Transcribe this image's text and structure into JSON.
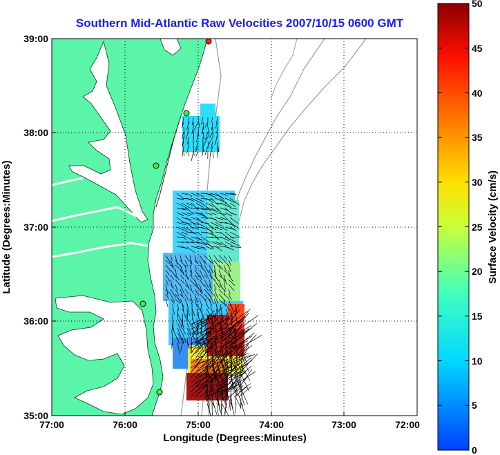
{
  "title": "Southern Mid-Atlantic Raw Velocities 2007/10/15 0600 GMT",
  "map": {
    "xlabel": "Longitude (Degrees:Minutes)",
    "ylabel": "Latitude (Degrees:Minutes)",
    "x_ticks": [
      "77:00",
      "76:00",
      "75:00",
      "74:00",
      "73:00",
      "72:00"
    ],
    "y_ticks": [
      "39:00",
      "38:00",
      "37:00",
      "36:00",
      "35:00"
    ],
    "lon_range": [
      -77,
      -72
    ],
    "lat_range": [
      35,
      39
    ],
    "land_color": "#5af5a8",
    "grid": "dotted"
  },
  "colorbar": {
    "label": "Surface Velocity (cm/s)",
    "ticks": [
      "50",
      "45",
      "40",
      "35",
      "30",
      "25",
      "20",
      "15",
      "10",
      "5",
      "0"
    ],
    "range": [
      0,
      50
    ],
    "colormap": "jet"
  },
  "stations": [
    {
      "color": "#ff2020"
    },
    {
      "color": "#44ee44"
    },
    {
      "color": "#44ee44"
    },
    {
      "color": "#44ee44"
    },
    {
      "color": "#44ee44"
    }
  ]
}
